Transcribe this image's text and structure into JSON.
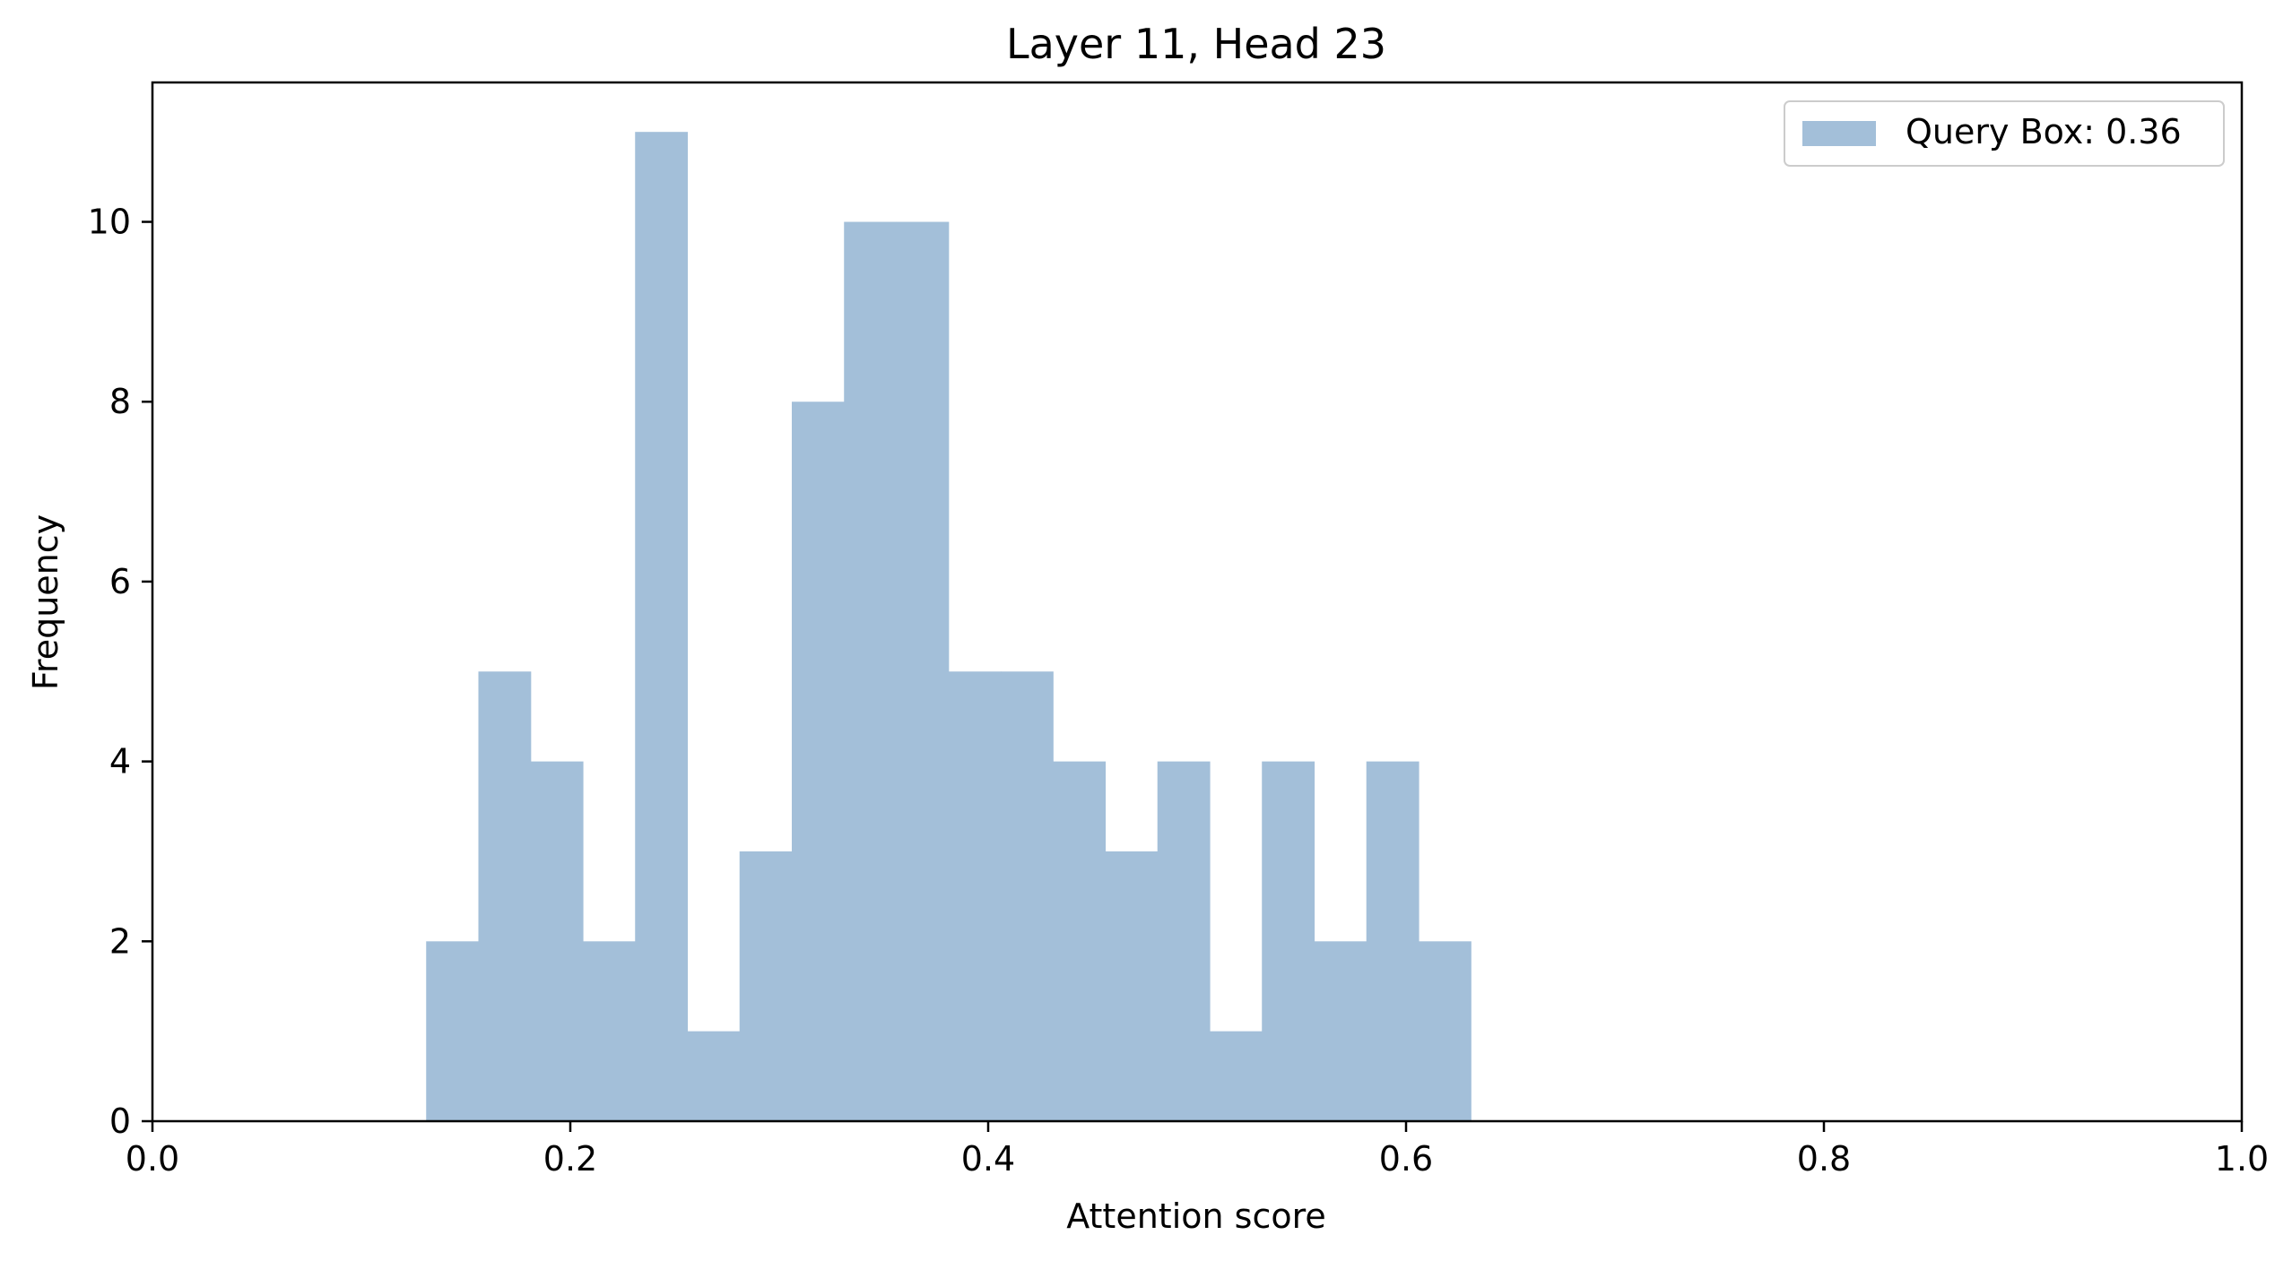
{
  "chart_data": {
    "type": "bar",
    "subtype": "histogram",
    "title": "Layer 11, Head 23",
    "xlabel": "Attention score",
    "ylabel": "Frequency",
    "xlim": [
      0.0,
      1.0
    ],
    "ylim": [
      0,
      11.55
    ],
    "xticks": [
      0.0,
      0.2,
      0.4,
      0.6,
      0.8,
      1.0
    ],
    "xtick_labels": [
      "0.0",
      "0.2",
      "0.4",
      "0.6",
      "0.8",
      "1.0"
    ],
    "yticks": [
      0,
      2,
      4,
      6,
      8,
      10
    ],
    "ytick_labels": [
      "0",
      "2",
      "4",
      "6",
      "8",
      "10"
    ],
    "bin_edges": [
      0.131,
      0.156,
      0.181,
      0.206,
      0.231,
      0.256,
      0.281,
      0.306,
      0.331,
      0.356,
      0.381,
      0.406,
      0.431,
      0.456,
      0.481,
      0.506,
      0.531,
      0.556,
      0.581,
      0.606,
      0.631
    ],
    "values": [
      2,
      5,
      4,
      2,
      11,
      1,
      3,
      8,
      10,
      10,
      5,
      5,
      4,
      3,
      4,
      1,
      4,
      2,
      4,
      2
    ],
    "series": [
      {
        "name": "Query Box: 0.36",
        "color": "#a3bfd9"
      }
    ],
    "legend": {
      "entries": [
        "Query Box: 0.36"
      ],
      "placement": "top-right"
    },
    "grid": false
  }
}
